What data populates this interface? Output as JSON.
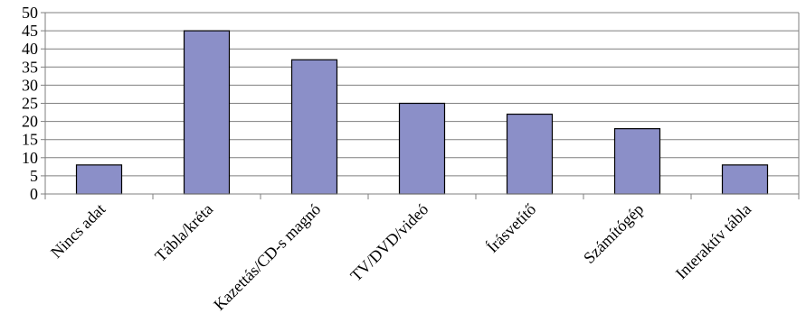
{
  "chart_data": {
    "type": "bar",
    "categories": [
      "Nincs adat",
      "Tábla/kréta",
      "Kazettás/CD-s magnó",
      "TV/DVD/videó",
      "Írásvetítő",
      "Számítógép",
      "Interaktív tábla"
    ],
    "values": [
      8,
      45,
      37,
      25,
      22,
      18,
      8
    ],
    "ylim": [
      0,
      50
    ],
    "yticks": [
      "0",
      "5",
      "10",
      "15",
      "20",
      "25",
      "30",
      "35",
      "40",
      "45",
      "50"
    ],
    "title": "",
    "xlabel": "",
    "ylabel": "",
    "grid": true,
    "legend": "none",
    "colors": {
      "bar_fill": "#8b8fc8",
      "bar_stroke": "#000000",
      "grid": "#7f7f7f",
      "axis": "#7f7f7f"
    }
  }
}
